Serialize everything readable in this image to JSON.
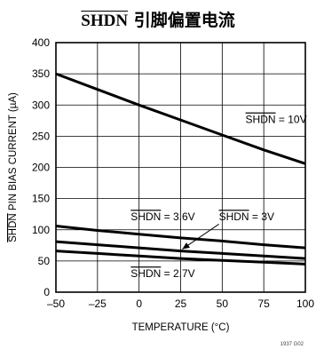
{
  "chart_data": {
    "type": "line",
    "title_overline": "SHDN",
    "title_rest": " 引脚偏置电流",
    "xlabel": "TEMPERATURE (°C)",
    "ylabel_overline": "SHDN",
    "ylabel_rest": " PIN BIAS CURRENT (µA)",
    "xlim": [
      -50,
      100
    ],
    "ylim": [
      0,
      400
    ],
    "xticks": [
      "–50",
      "–25",
      "0",
      "25",
      "50",
      "75",
      "100"
    ],
    "yticks": [
      "0",
      "50",
      "100",
      "150",
      "200",
      "250",
      "300",
      "350",
      "400"
    ],
    "grid": true,
    "series": [
      {
        "name": "SHDN = 10V",
        "x": [
          -50,
          -25,
          0,
          25,
          50,
          75,
          100
        ],
        "y": [
          350,
          325,
          300,
          276,
          252,
          228,
          206
        ]
      },
      {
        "name": "SHDN = 3.6V",
        "x": [
          -50,
          -25,
          0,
          25,
          50,
          75,
          100
        ],
        "y": [
          106,
          99,
          93,
          87,
          82,
          76,
          71
        ]
      },
      {
        "name": "SHDN = 3V",
        "x": [
          -50,
          -25,
          0,
          25,
          50,
          75,
          100
        ],
        "y": [
          81,
          76,
          71,
          66,
          62,
          58,
          54
        ]
      },
      {
        "name": "SHDN = 2.7V",
        "x": [
          -50,
          -25,
          0,
          25,
          50,
          75,
          100
        ],
        "y": [
          66,
          62,
          58,
          54,
          51,
          48,
          45
        ]
      }
    ],
    "annotations": [
      {
        "prefix": "SHDN",
        "suffix": " = 10V"
      },
      {
        "prefix": "SHDN",
        "suffix": " = 3.6V"
      },
      {
        "prefix": "SHDN",
        "suffix": " = 3V"
      },
      {
        "prefix": "SHDN",
        "suffix": " = 2.7V"
      }
    ],
    "footnote": "1937 G02"
  }
}
